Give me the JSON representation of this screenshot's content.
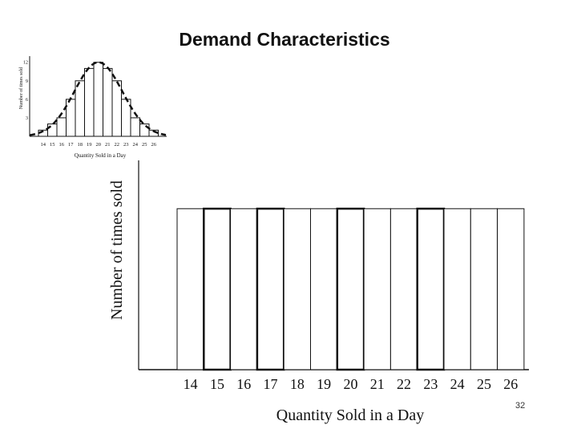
{
  "slide": {
    "title": "Demand Characteristics",
    "page_number": "32"
  },
  "chart_data": [
    {
      "type": "bar",
      "name": "inset-normal-demand",
      "categories": [
        "14",
        "15",
        "16",
        "17",
        "18",
        "19",
        "20",
        "21",
        "22",
        "23",
        "24",
        "25",
        "26"
      ],
      "values": [
        1,
        2,
        3,
        6,
        9,
        11,
        12,
        11,
        9,
        6,
        3,
        2,
        1
      ],
      "curve": "normal",
      "xlabel": "Quantity Sold in a Day",
      "ylabel": "Number of times sold",
      "yticks": [
        "3",
        "6",
        "9",
        "12"
      ],
      "ylim": [
        0,
        13
      ]
    },
    {
      "type": "bar",
      "name": "main-uniform-demand",
      "categories": [
        "14",
        "15",
        "16",
        "17",
        "18",
        "19",
        "20",
        "21",
        "22",
        "23",
        "24",
        "25",
        "26"
      ],
      "values": [
        1,
        1,
        1,
        1,
        1,
        1,
        1,
        1,
        1,
        1,
        1,
        1,
        1
      ],
      "xlabel": "Quantity Sold in a Day",
      "ylabel": "Number of times sold",
      "ylim": [
        0,
        1.3
      ]
    }
  ]
}
